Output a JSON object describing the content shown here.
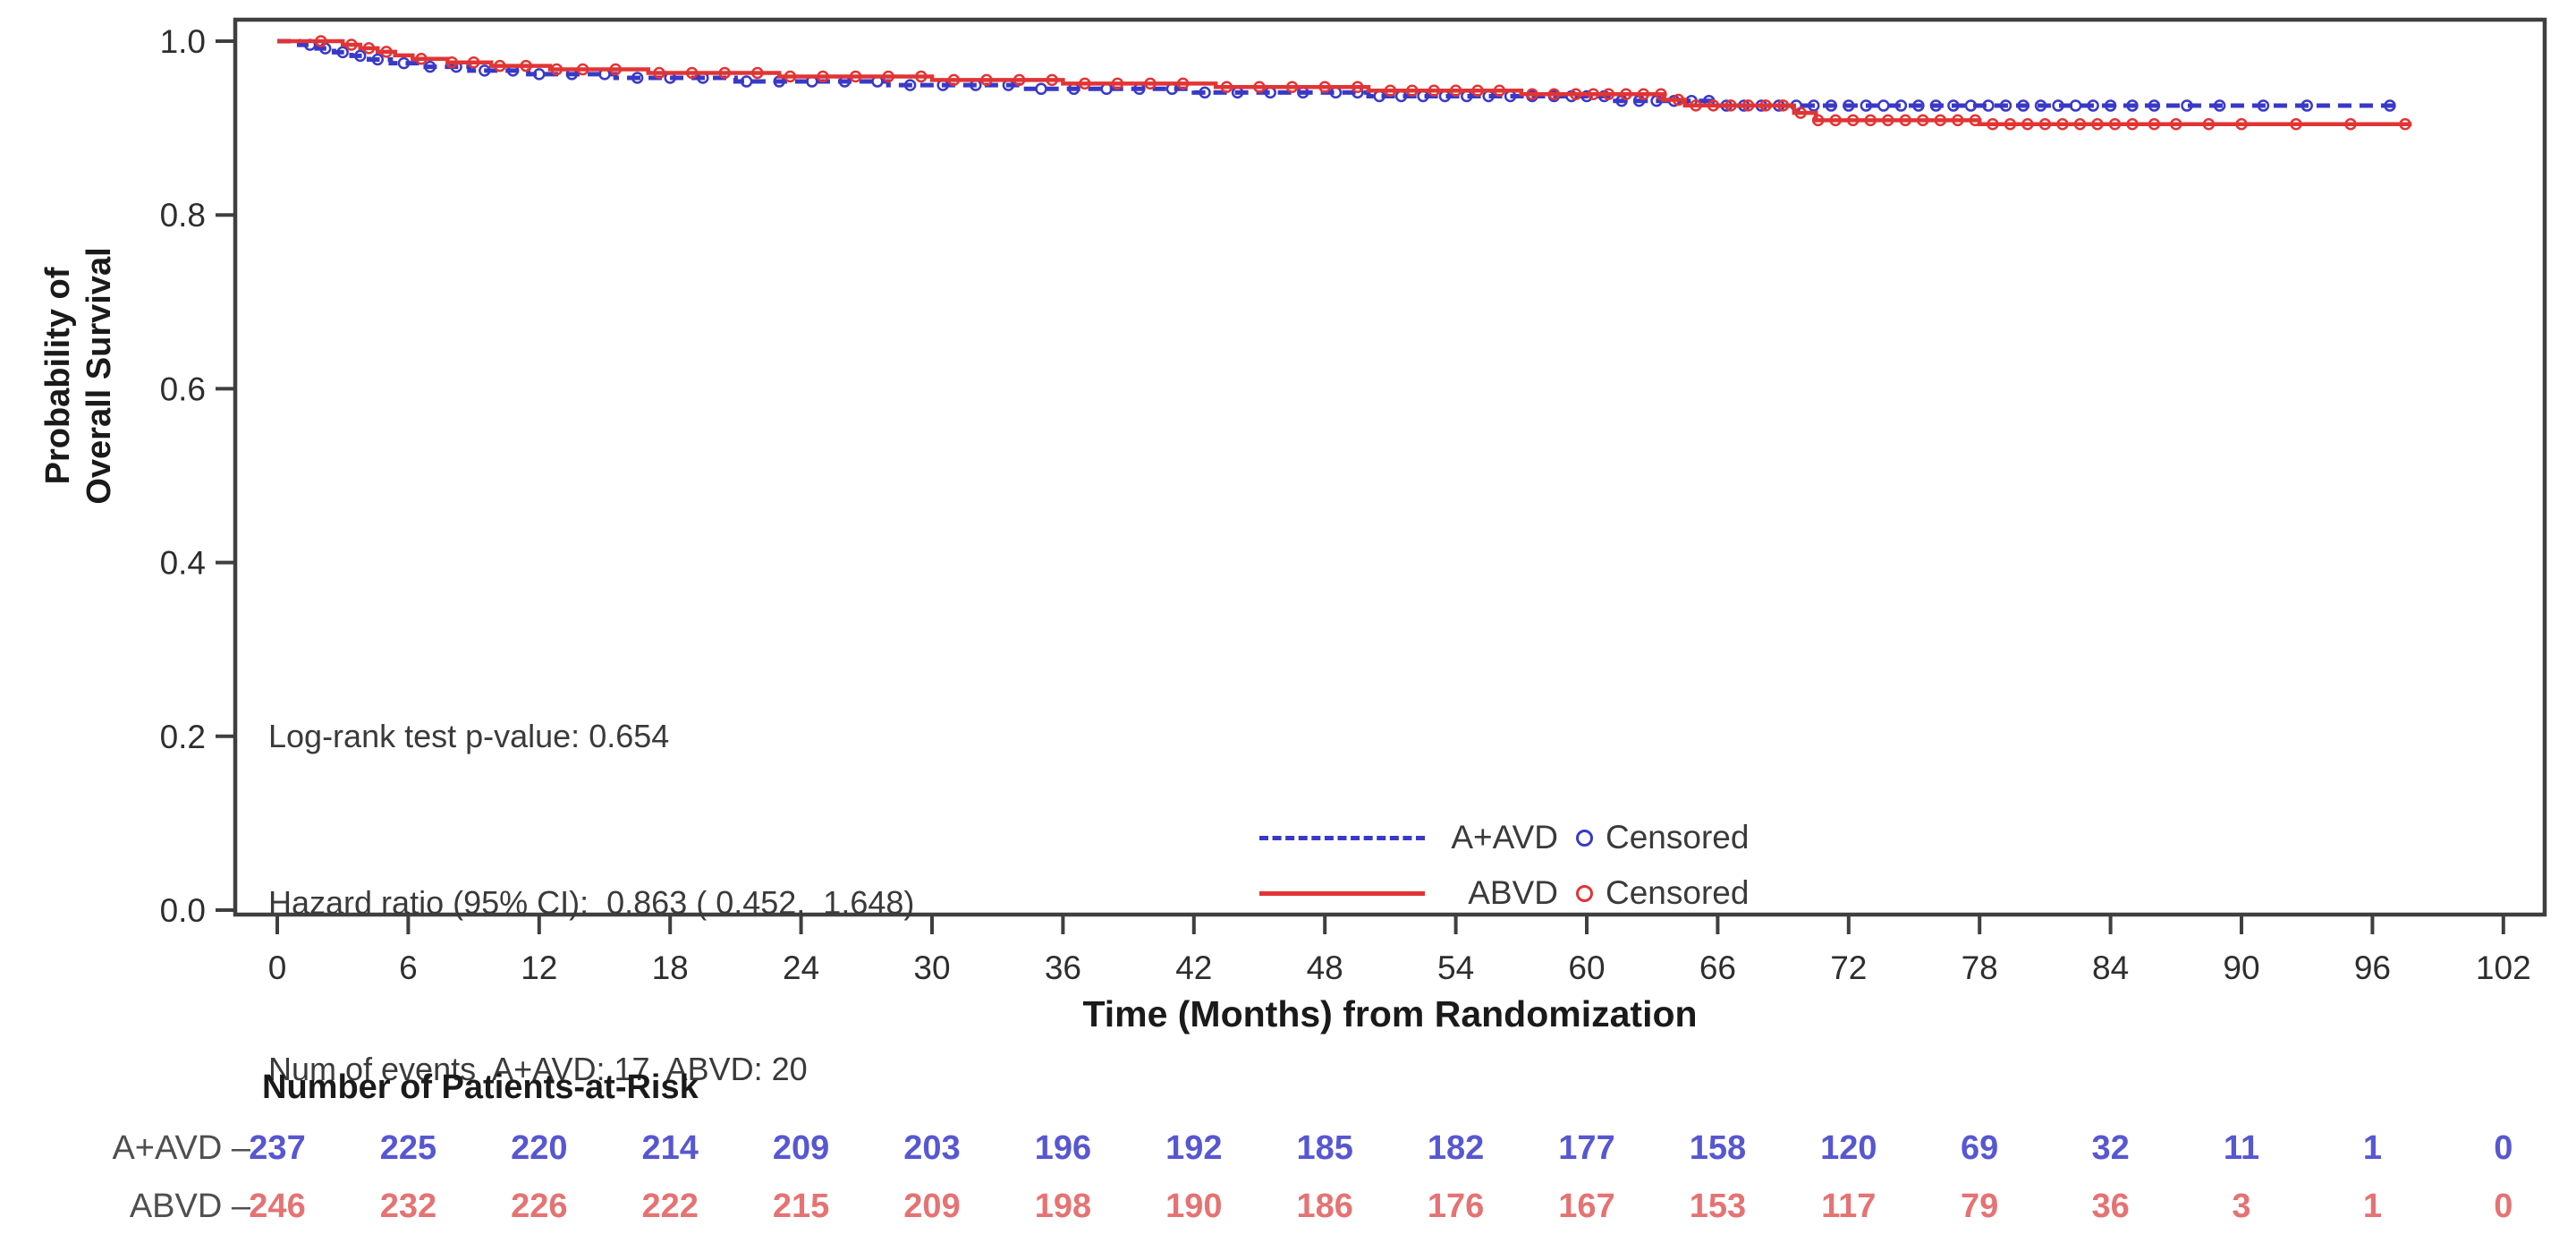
{
  "chart_data": {
    "type": "line",
    "subtype": "kaplan-meier-step",
    "title": "",
    "xlabel": "Time (Months) from Randomization",
    "ylabel_lines": [
      "Probability of",
      "Overall Survival"
    ],
    "xlim": [
      0,
      102
    ],
    "xticks": [
      0,
      6,
      12,
      18,
      24,
      30,
      36,
      42,
      48,
      54,
      60,
      66,
      72,
      78,
      84,
      90,
      96,
      102
    ],
    "ylim": [
      0.0,
      1.0
    ],
    "yticks": [
      "1.0",
      "0.8",
      "0.6",
      "0.4",
      "0.2",
      "0.0"
    ],
    "grid": false,
    "frame_color": "#3f3f3f",
    "tick_text_color": "#2e2e2e",
    "annotations": [
      "Log-rank test p-value: 0.654",
      "Hazard ratio (95% CI):  0.863 ( 0.452,  1.648)",
      "Num of events  A+AVD: 17  ABVD: 20"
    ],
    "legend": {
      "position": "inside-bottom-right",
      "censored_label": "Censored"
    },
    "series": [
      {
        "name": "A+AVD",
        "color": "#3939c8",
        "style": "dashed",
        "n_events": 17,
        "steps": [
          [
            0,
            1.0
          ],
          [
            1.0,
            0.9958
          ],
          [
            1.8,
            0.9916
          ],
          [
            2.6,
            0.9873
          ],
          [
            3.4,
            0.9831
          ],
          [
            4.2,
            0.9789
          ],
          [
            5.2,
            0.9747
          ],
          [
            6.8,
            0.9705
          ],
          [
            8.8,
            0.9662
          ],
          [
            11.5,
            0.962
          ],
          [
            15.5,
            0.9578
          ],
          [
            21,
            0.9536
          ],
          [
            28,
            0.9494
          ],
          [
            34,
            0.9451
          ],
          [
            42,
            0.9409
          ],
          [
            50,
            0.9367
          ],
          [
            61,
            0.9313
          ],
          [
            66,
            0.9258
          ]
        ],
        "end_time": 97.2,
        "censor_times": [
          1.5,
          2.2,
          3.0,
          3.8,
          4.6,
          5.8,
          7,
          8.2,
          9.5,
          10.8,
          12,
          13.5,
          15,
          16.5,
          18,
          19.5,
          21.5,
          23,
          24.5,
          26,
          27.5,
          29,
          30.5,
          32,
          33.5,
          35,
          36.5,
          38,
          39.5,
          41,
          42.5,
          44,
          45.5,
          47,
          48.5,
          49.5,
          50.5,
          51.5,
          52.5,
          53.5,
          54.5,
          55.5,
          56.5,
          57.5,
          58.5,
          59.3,
          60,
          60.8,
          61.6,
          62.4,
          63.2,
          64,
          64.8,
          65.6,
          66.4,
          67.2,
          68,
          68.8,
          69.6,
          70.4,
          71.2,
          72,
          72.8,
          73.6,
          74.4,
          75.2,
          76,
          76.8,
          77.6,
          78.4,
          79.2,
          80,
          80.8,
          81.6,
          82.4,
          83.2,
          84,
          85,
          86,
          87.5,
          89,
          91,
          93,
          96.8
        ]
      },
      {
        "name": "ABVD",
        "color": "#e23434",
        "style": "solid",
        "n_events": 20,
        "steps": [
          [
            0,
            1.0
          ],
          [
            3.0,
            0.9959
          ],
          [
            3.8,
            0.9919
          ],
          [
            4.6,
            0.9878
          ],
          [
            5.4,
            0.9837
          ],
          [
            6.2,
            0.9797
          ],
          [
            7.8,
            0.9756
          ],
          [
            9.8,
            0.9715
          ],
          [
            12.5,
            0.9675
          ],
          [
            17,
            0.9634
          ],
          [
            23,
            0.9593
          ],
          [
            30,
            0.9553
          ],
          [
            36,
            0.9512
          ],
          [
            43,
            0.9472
          ],
          [
            50,
            0.9431
          ],
          [
            57,
            0.939
          ],
          [
            63.5,
            0.9325
          ],
          [
            64.5,
            0.926
          ],
          [
            69.5,
            0.9175
          ],
          [
            70.5,
            0.909
          ],
          [
            78,
            0.9045
          ]
        ],
        "end_time": 97.8,
        "censor_times": [
          2,
          3.4,
          4.2,
          5,
          6.6,
          8,
          9,
          10.2,
          11.4,
          12.8,
          14,
          15.5,
          17.5,
          19,
          20.5,
          22,
          23.5,
          25,
          26.5,
          28,
          29.5,
          31,
          32.5,
          34,
          35.5,
          37,
          38.5,
          40,
          41.5,
          43.5,
          45,
          46.5,
          48,
          49.5,
          51,
          52,
          53,
          54,
          55,
          56,
          57.5,
          58.5,
          59.5,
          60.3,
          61,
          61.8,
          62.6,
          63.4,
          64.2,
          65,
          65.8,
          66.6,
          67.4,
          68.2,
          69,
          69.8,
          70.6,
          71.4,
          72.2,
          73,
          73.8,
          74.6,
          75.4,
          76.2,
          77,
          77.8,
          78.6,
          79.4,
          80.2,
          81,
          81.8,
          82.6,
          83.4,
          84.2,
          85,
          86,
          87,
          88.5,
          90,
          92.5,
          95,
          97.5
        ]
      }
    ],
    "at_risk": {
      "header": "Number of Patients-at-Risk",
      "times": [
        0,
        6,
        12,
        18,
        24,
        30,
        36,
        42,
        48,
        54,
        60,
        66,
        72,
        78,
        84,
        90,
        96,
        102
      ],
      "rows": [
        {
          "label": "A+AVD –",
          "value_color": "#5757d2",
          "values": [
            237,
            225,
            220,
            214,
            209,
            203,
            196,
            192,
            185,
            182,
            177,
            158,
            120,
            69,
            32,
            11,
            1,
            0
          ]
        },
        {
          "label": "ABVD –",
          "value_color": "#e57373",
          "values": [
            246,
            232,
            226,
            222,
            215,
            209,
            198,
            190,
            186,
            176,
            167,
            153,
            117,
            79,
            36,
            3,
            1,
            0
          ]
        }
      ]
    }
  }
}
